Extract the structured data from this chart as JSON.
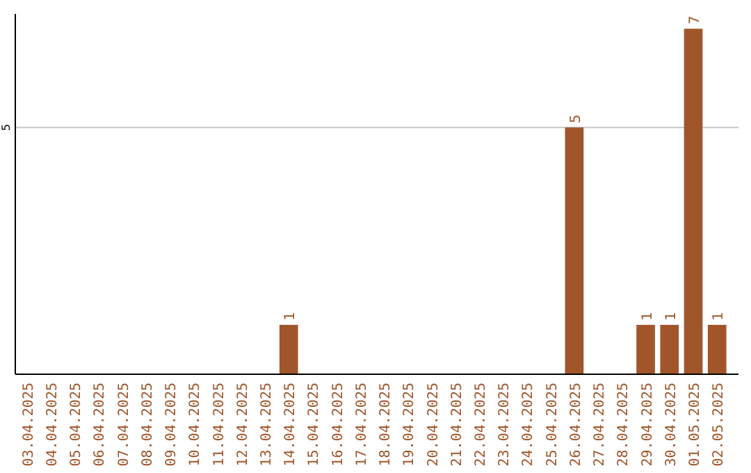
{
  "chart_data": {
    "type": "bar",
    "categories": [
      "03.04.2025",
      "04.04.2025",
      "05.04.2025",
      "06.04.2025",
      "07.04.2025",
      "08.04.2025",
      "09.04.2025",
      "10.04.2025",
      "11.04.2025",
      "12.04.2025",
      "13.04.2025",
      "14.04.2025",
      "15.04.2025",
      "16.04.2025",
      "17.04.2025",
      "18.04.2025",
      "19.04.2025",
      "20.04.2025",
      "21.04.2025",
      "22.04.2025",
      "23.04.2025",
      "24.04.2025",
      "25.04.2025",
      "26.04.2025",
      "27.04.2025",
      "28.04.2025",
      "29.04.2025",
      "30.04.2025",
      "01.05.2025",
      "02.05.2025"
    ],
    "values": [
      0,
      0,
      0,
      0,
      0,
      0,
      0,
      0,
      0,
      0,
      0,
      1,
      0,
      0,
      0,
      0,
      0,
      0,
      0,
      0,
      0,
      0,
      0,
      5,
      0,
      0,
      1,
      1,
      7,
      1
    ],
    "value_labels": [
      null,
      null,
      null,
      null,
      null,
      null,
      null,
      null,
      null,
      null,
      null,
      "1",
      null,
      null,
      null,
      null,
      null,
      null,
      null,
      null,
      null,
      null,
      null,
      "5",
      null,
      null,
      "1",
      "1",
      "7",
      "1"
    ],
    "color": "#a0562a",
    "ylim": [
      0,
      7.3
    ],
    "yticks": [
      5
    ],
    "grid": "y"
  }
}
